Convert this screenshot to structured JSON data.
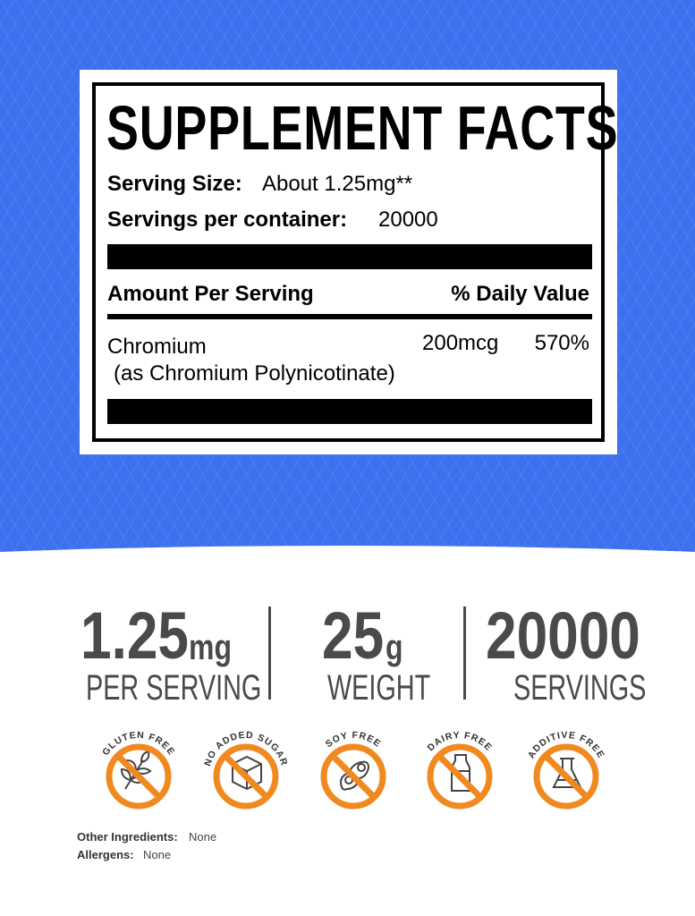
{
  "colors": {
    "background": "#3c70ef",
    "accent_orange": "#f0891f",
    "stat_gray": "#4a4a4a"
  },
  "facts": {
    "title": "SUPPLEMENT FACTS",
    "serving_size_label": "Serving Size:",
    "serving_size_value": "About 1.25mg**",
    "servings_label": "Servings per container:",
    "servings_value": "20000",
    "amount_header": "Amount Per Serving",
    "dv_header": "% Daily Value",
    "ingredient": "Chromium",
    "ingredient_sub": "(as Chromium Polynicotinate)",
    "amount": "200mcg",
    "dv": "570%"
  },
  "stats": [
    {
      "value": "1.25",
      "unit": "mg",
      "caption": "PER SERVING"
    },
    {
      "value": "25",
      "unit": "g",
      "caption": "WEIGHT"
    },
    {
      "value": "20000",
      "unit": "",
      "caption": "SERVINGS"
    }
  ],
  "badges": [
    {
      "label": "GLUTEN FREE",
      "icon": "wheat-icon"
    },
    {
      "label": "NO ADDED SUGAR",
      "icon": "sugar-cube-icon"
    },
    {
      "label": "SOY FREE",
      "icon": "soybean-icon"
    },
    {
      "label": "DAIRY FREE",
      "icon": "milk-bottle-icon"
    },
    {
      "label": "ADDITIVE FREE",
      "icon": "flask-icon"
    }
  ],
  "footer": {
    "other_label": "Other Ingredients:",
    "other_value": "None",
    "allergens_label": "Allergens:",
    "allergens_value": "None"
  }
}
